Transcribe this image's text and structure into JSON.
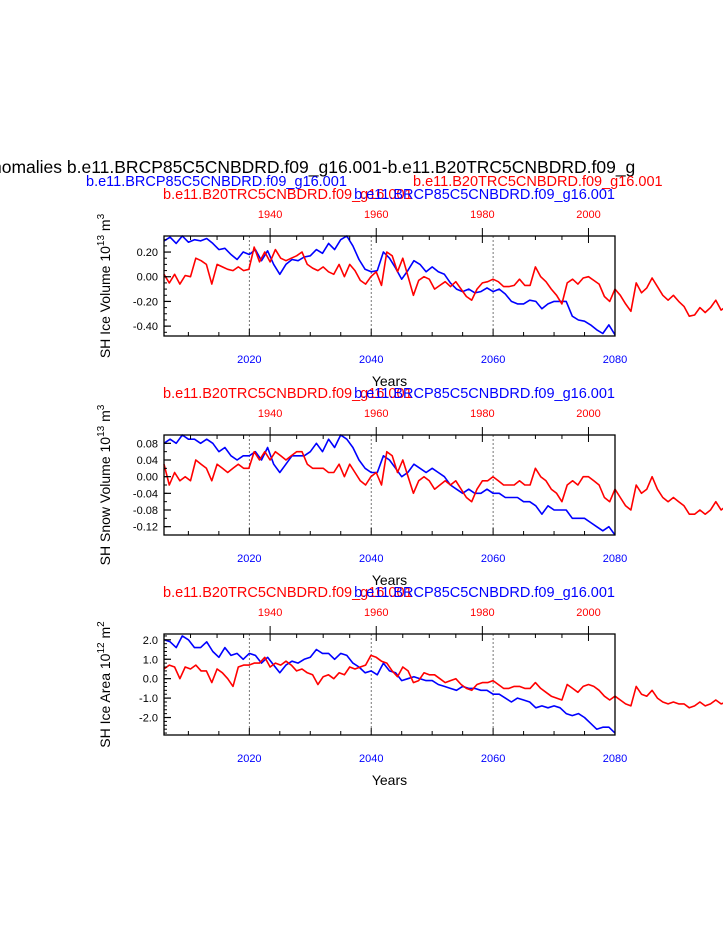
{
  "header": {
    "title": "nomalies b.e11.BRCP85C5CNBDRD.f09_g16.001-b.e11.B20TRC5CNBDRD.f09_g",
    "left_case": "b.e11.BRCP85C5CNBDRD.f09_g16.001",
    "right_case": "b.e11.B20TRC5CNBDRD.f09_g16.001"
  },
  "colors": {
    "rcp": "#0000ff",
    "hist": "#ff0000",
    "axis": "#000000"
  },
  "chart_data": [
    {
      "type": "line",
      "id": "ice-volume",
      "ylabel_main": "SH Ice Volume 10",
      "ylabel_exp": "13",
      "ylabel_unit": " m",
      "ylabel_unit_exp": "3",
      "xlabel": "Years",
      "top_label_red": "b.e11.B20TRC5CNBDRD.f09_g16.001",
      "top_label_blue": "b.e11.BRCP85C5CNBDRD.f09_g16.001",
      "xlim_bottom": [
        2006,
        2080
      ],
      "xlim_top": [
        1920,
        2005
      ],
      "xticks_bottom": [
        "2020",
        "2040",
        "2060",
        "2080"
      ],
      "xticks_top": [
        "1940",
        "1960",
        "1980",
        "2000"
      ],
      "ylim": [
        -0.48,
        0.33
      ],
      "yticks": [
        0.2,
        0.0,
        -0.2,
        -0.4
      ],
      "ytick_labels": [
        "0.20",
        "0.00",
        "-0.20",
        "-0.40"
      ],
      "minor_step": 0.05,
      "vlines": [
        2020,
        2040,
        2060
      ],
      "series": [
        {
          "color_key": "rcp",
          "axis": "bottom",
          "x0": 2006,
          "step": 1,
          "values": [
            0.29,
            0.32,
            0.27,
            0.33,
            0.28,
            0.3,
            0.29,
            0.31,
            0.27,
            0.22,
            0.23,
            0.18,
            0.14,
            0.2,
            0.18,
            0.22,
            0.13,
            0.21,
            0.1,
            0.02,
            0.1,
            0.14,
            0.13,
            0.16,
            0.17,
            0.22,
            0.19,
            0.27,
            0.22,
            0.3,
            0.33,
            0.25,
            0.14,
            0.06,
            0.04,
            0.05,
            0.2,
            0.15,
            0.07,
            -0.02,
            0.05,
            0.13,
            0.1,
            0.04,
            0.08,
            0.04,
            0.02,
            -0.05,
            -0.1,
            -0.12,
            -0.1,
            -0.13,
            -0.12,
            -0.09,
            -0.12,
            -0.1,
            -0.14,
            -0.2,
            -0.22,
            -0.22,
            -0.19,
            -0.2,
            -0.26,
            -0.22,
            -0.2,
            -0.2,
            -0.2,
            -0.32,
            -0.35,
            -0.36,
            -0.39,
            -0.43,
            -0.46,
            -0.39,
            -0.47
          ]
        },
        {
          "color_key": "hist",
          "axis": "top",
          "x0": 1920,
          "step": 1,
          "values": [
            0.02,
            -0.05,
            0.02,
            -0.06,
            0.01,
            0.0,
            0.15,
            0.13,
            0.1,
            -0.06,
            0.1,
            0.08,
            0.06,
            0.05,
            0.08,
            0.05,
            0.06,
            0.24,
            0.12,
            0.2,
            0.12,
            0.22,
            0.15,
            0.13,
            0.15,
            0.17,
            0.2,
            0.1,
            0.07,
            0.05,
            0.08,
            0.04,
            0.02,
            0.1,
            0.0,
            0.1,
            0.05,
            -0.03,
            -0.06,
            0.0,
            0.04,
            -0.07,
            0.2,
            0.17,
            0.04,
            0.15,
            0.0,
            -0.15,
            -0.03,
            0.0,
            -0.02,
            -0.1,
            -0.07,
            -0.04,
            -0.08,
            -0.04,
            -0.1,
            -0.16,
            -0.19,
            -0.1,
            -0.05,
            -0.04,
            -0.02,
            -0.04,
            -0.08,
            -0.08,
            -0.07,
            -0.02,
            -0.07,
            -0.07,
            0.08,
            0.0,
            -0.04,
            -0.1,
            -0.15,
            -0.22,
            -0.05,
            -0.02,
            -0.06,
            -0.01,
            0.0,
            -0.03,
            -0.06,
            -0.16,
            -0.2,
            -0.1,
            -0.15,
            -0.22,
            -0.28,
            -0.05,
            -0.13,
            -0.09,
            -0.01,
            -0.08,
            -0.15,
            -0.19,
            -0.15,
            -0.2,
            -0.24,
            -0.32,
            -0.31,
            -0.25,
            -0.29,
            -0.25,
            -0.19,
            -0.27,
            -0.24,
            -0.22
          ]
        }
      ]
    },
    {
      "type": "line",
      "id": "snow-volume",
      "ylabel_main": "SH Snow Volume 10",
      "ylabel_exp": "13",
      "ylabel_unit": " m",
      "ylabel_unit_exp": "3",
      "xlabel": "Years",
      "top_label_red": "b.e11.B20TRC5CNBDRD.f09_g16.001",
      "top_label_blue": "b.e11.BRCP85C5CNBDRD.f09_g16.001",
      "xlim_bottom": [
        2006,
        2080
      ],
      "xlim_top": [
        1920,
        2005
      ],
      "xticks_bottom": [
        "2020",
        "2040",
        "2060",
        "2080"
      ],
      "xticks_top": [
        "1940",
        "1960",
        "1980",
        "2000"
      ],
      "ylim": [
        -0.14,
        0.1
      ],
      "yticks": [
        0.08,
        0.04,
        0.0,
        -0.04,
        -0.08,
        -0.12
      ],
      "ytick_labels": [
        "0.08",
        "0.04",
        "0.00",
        "-0.04",
        "-0.08",
        "-0.12"
      ],
      "minor_step": 0.02,
      "vlines": [
        2020,
        2040,
        2060
      ],
      "series": [
        {
          "color_key": "rcp",
          "axis": "bottom",
          "x0": 2006,
          "step": 1,
          "values": [
            0.08,
            0.09,
            0.08,
            0.1,
            0.09,
            0.09,
            0.08,
            0.09,
            0.08,
            0.06,
            0.07,
            0.05,
            0.04,
            0.05,
            0.05,
            0.06,
            0.04,
            0.07,
            0.03,
            0.01,
            0.03,
            0.05,
            0.05,
            0.05,
            0.06,
            0.08,
            0.06,
            0.09,
            0.07,
            0.1,
            0.09,
            0.07,
            0.04,
            0.02,
            0.01,
            0.01,
            0.05,
            0.04,
            0.02,
            -0.0,
            0.01,
            0.03,
            0.02,
            0.01,
            0.02,
            0.01,
            0.0,
            -0.02,
            -0.03,
            -0.04,
            -0.03,
            -0.04,
            -0.04,
            -0.03,
            -0.04,
            -0.04,
            -0.05,
            -0.05,
            -0.05,
            -0.06,
            -0.06,
            -0.07,
            -0.09,
            -0.07,
            -0.08,
            -0.08,
            -0.08,
            -0.1,
            -0.1,
            -0.1,
            -0.11,
            -0.12,
            -0.13,
            -0.12,
            -0.14
          ]
        },
        {
          "color_key": "hist",
          "axis": "top",
          "x0": 1920,
          "step": 1,
          "values": [
            0.03,
            -0.02,
            0.01,
            -0.01,
            0.0,
            -0.01,
            0.04,
            0.03,
            0.02,
            -0.01,
            0.03,
            0.02,
            0.01,
            0.02,
            0.03,
            0.02,
            0.02,
            0.06,
            0.04,
            0.06,
            0.04,
            0.06,
            0.05,
            0.04,
            0.05,
            0.06,
            0.06,
            0.03,
            0.02,
            0.02,
            0.02,
            0.01,
            0.01,
            0.03,
            0.0,
            0.03,
            0.01,
            -0.01,
            -0.02,
            0.0,
            0.01,
            -0.02,
            0.06,
            0.05,
            0.01,
            0.04,
            0.0,
            -0.04,
            -0.01,
            0.0,
            -0.01,
            -0.03,
            -0.02,
            -0.01,
            -0.02,
            -0.01,
            -0.03,
            -0.05,
            -0.06,
            -0.03,
            -0.01,
            -0.01,
            0.0,
            -0.01,
            -0.02,
            -0.02,
            -0.02,
            -0.01,
            -0.02,
            -0.02,
            0.02,
            0.0,
            -0.01,
            -0.03,
            -0.04,
            -0.06,
            -0.02,
            -0.01,
            -0.02,
            0.0,
            0.0,
            -0.01,
            -0.02,
            -0.05,
            -0.06,
            -0.03,
            -0.05,
            -0.07,
            -0.08,
            -0.02,
            -0.04,
            -0.03,
            0.0,
            -0.03,
            -0.05,
            -0.06,
            -0.05,
            -0.06,
            -0.07,
            -0.09,
            -0.09,
            -0.08,
            -0.09,
            -0.08,
            -0.06,
            -0.08,
            -0.07,
            -0.08
          ]
        }
      ]
    },
    {
      "type": "line",
      "id": "ice-area",
      "ylabel_main": "SH Ice Area 10",
      "ylabel_exp": "12",
      "ylabel_unit": " m",
      "ylabel_unit_exp": "2",
      "xlabel": "Years",
      "top_label_red": "b.e11.B20TRC5CNBDRD.f09_g16.001",
      "top_label_blue": "b.e11.BRCP85C5CNBDRD.f09_g16.001",
      "xlim_bottom": [
        2006,
        2080
      ],
      "xlim_top": [
        1920,
        2005
      ],
      "xticks_bottom": [
        "2020",
        "2040",
        "2060",
        "2080"
      ],
      "xticks_top": [
        "1940",
        "1960",
        "1980",
        "2000"
      ],
      "ylim": [
        -2.9,
        2.3
      ],
      "yticks": [
        2.0,
        1.0,
        0.0,
        -1.0,
        -2.0
      ],
      "ytick_labels": [
        "2.0",
        "1.0",
        "0.0",
        "-1.0",
        "-2.0"
      ],
      "minor_step": 0.2,
      "vlines": [
        2020,
        2040,
        2060
      ],
      "series": [
        {
          "color_key": "rcp",
          "axis": "bottom",
          "x0": 2006,
          "step": 1,
          "values": [
            2.0,
            1.9,
            1.6,
            2.2,
            2.0,
            1.6,
            1.6,
            1.9,
            1.4,
            1.1,
            1.6,
            1.2,
            1.3,
            1.0,
            1.3,
            1.2,
            0.8,
            1.1,
            0.7,
            0.3,
            0.7,
            0.9,
            0.8,
            1.0,
            1.1,
            1.5,
            1.3,
            1.3,
            1.0,
            1.3,
            1.2,
            0.8,
            0.6,
            0.3,
            0.4,
            0.2,
            0.8,
            0.4,
            0.3,
            -0.1,
            0.0,
            0.1,
            0.0,
            -0.1,
            -0.1,
            -0.3,
            -0.4,
            -0.5,
            -0.6,
            -0.4,
            -0.5,
            -0.5,
            -0.6,
            -0.6,
            -0.8,
            -0.8,
            -1.0,
            -1.2,
            -1.0,
            -1.1,
            -1.2,
            -1.5,
            -1.4,
            -1.5,
            -1.4,
            -1.5,
            -1.8,
            -1.9,
            -1.8,
            -2.0,
            -2.3,
            -2.6,
            -2.5,
            -2.5,
            -2.8
          ]
        },
        {
          "color_key": "hist",
          "axis": "top",
          "x0": 1920,
          "step": 1,
          "values": [
            0.5,
            0.7,
            0.6,
            0.0,
            0.6,
            0.5,
            0.7,
            0.4,
            0.4,
            -0.2,
            0.5,
            0.3,
            0.0,
            -0.4,
            0.6,
            0.7,
            0.7,
            0.8,
            0.8,
            1.1,
            0.6,
            0.8,
            0.7,
            0.9,
            0.7,
            0.4,
            0.5,
            0.3,
            0.2,
            -0.3,
            0.1,
            0.2,
            0.0,
            0.3,
            0.2,
            0.6,
            0.5,
            0.6,
            0.7,
            1.2,
            1.1,
            0.9,
            0.8,
            0.4,
            0.1,
            0.6,
            0.4,
            -0.2,
            -0.1,
            0.3,
            0.2,
            0.2,
            0.0,
            -0.2,
            -0.1,
            0.0,
            -0.3,
            -0.5,
            -0.6,
            -0.3,
            -0.2,
            -0.2,
            -0.1,
            -0.3,
            -0.5,
            -0.5,
            -0.4,
            -0.4,
            -0.5,
            -0.5,
            -0.2,
            -0.5,
            -0.7,
            -0.9,
            -1.0,
            -1.1,
            -0.3,
            -0.5,
            -0.7,
            -0.4,
            -0.3,
            -0.4,
            -0.6,
            -0.9,
            -1.1,
            -0.9,
            -1.1,
            -1.3,
            -1.4,
            -0.4,
            -0.8,
            -0.9,
            -0.6,
            -1.0,
            -1.2,
            -1.3,
            -1.2,
            -1.3,
            -1.3,
            -1.5,
            -1.4,
            -1.2,
            -1.4,
            -1.3,
            -1.1,
            -1.3,
            -1.2,
            -1.4
          ]
        }
      ]
    }
  ]
}
